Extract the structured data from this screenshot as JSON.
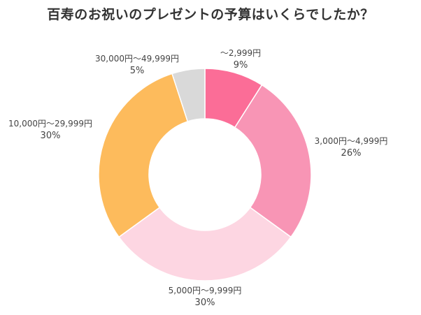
{
  "chart_data": {
    "type": "pie",
    "title": "百寿のお祝いのプレゼントの予算はいくらでしたか？",
    "donut": true,
    "categories": [
      "～2,999円",
      "3,000円～4,999円",
      "5,000円～9,999円",
      "10,000円～29,999円",
      "30,000円～49,999円"
    ],
    "values": [
      9,
      26,
      30,
      30,
      5
    ],
    "value_labels": [
      "9%",
      "26%",
      "30%",
      "30%",
      "5%"
    ],
    "colors": [
      "#fb6d97",
      "#f895b5",
      "#fdd6e2",
      "#fdbb5c",
      "#d9d9d9"
    ],
    "legend": "none"
  }
}
